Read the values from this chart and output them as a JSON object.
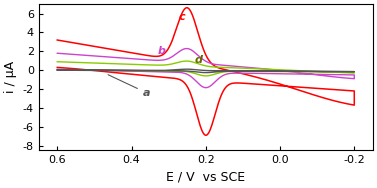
{
  "title": "",
  "xlabel": "E / V  vs SCE",
  "ylabel": "i / μA",
  "xlim": [
    0.65,
    -0.25
  ],
  "ylim": [
    -8.5,
    7
  ],
  "xticks": [
    0.6,
    0.4,
    0.2,
    0.0,
    -0.2
  ],
  "yticks": [
    -8,
    -6,
    -4,
    -2,
    0,
    2,
    4,
    6
  ],
  "background": "#ffffff",
  "label_fontsize": 9,
  "tick_fontsize": 8,
  "curve_a_color": "#555555",
  "curve_b_color": "#cc44cc",
  "curve_c_color": "#ff0000",
  "curve_d_color": "#88cc00"
}
